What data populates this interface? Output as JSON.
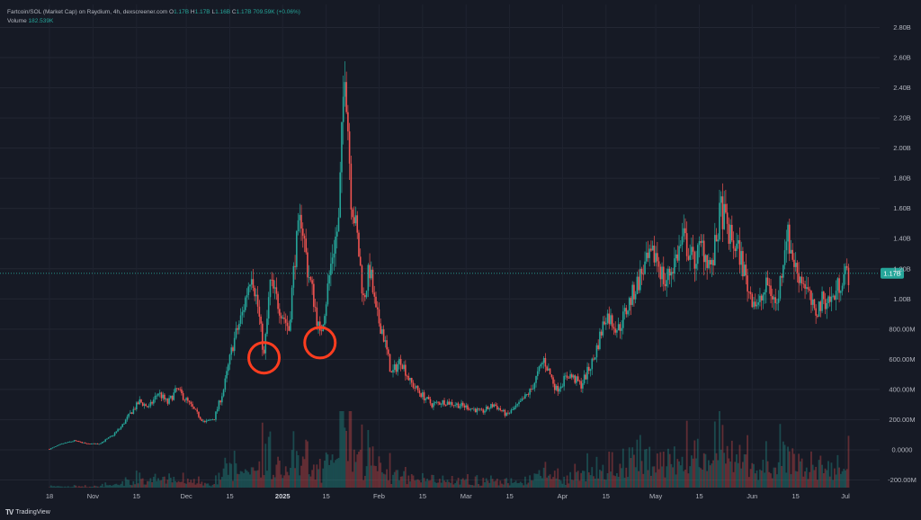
{
  "header": {
    "pair": "Fartcoin/SOL (Market Cap) on Raydium, 4h, dexscreener.com",
    "ohlc": [
      {
        "k": "O",
        "v": "1.17B"
      },
      {
        "k": "H",
        "v": "1.17B"
      },
      {
        "k": "L",
        "v": "1.16B"
      },
      {
        "k": "C",
        "v": "1.17B"
      }
    ],
    "change": "709.59K (+0.06%)",
    "volume_label": "Volume",
    "volume_value": "182.539K"
  },
  "brand": {
    "name": "TradingView"
  },
  "colors": {
    "up": "#26a69a",
    "down": "#ef5350",
    "marker": "#ff3d1f",
    "price_label_bg": "#26a69a",
    "background": "#161a25"
  },
  "chart_data": {
    "type": "candlestick",
    "grid": true,
    "y_tick_labels": [
      "2.80B",
      "2.60B",
      "2.40B",
      "2.20B",
      "2.00B",
      "1.80B",
      "1.60B",
      "1.40B",
      "1.20B",
      "1.00B",
      "800.00M",
      "600.00M",
      "400.00M",
      "200.00M",
      "0.0000",
      "-200.00M"
    ],
    "y_tick_values": [
      2800,
      2600,
      2400,
      2200,
      2000,
      1800,
      1600,
      1400,
      1200,
      1000,
      800,
      600,
      400,
      200,
      0,
      -200
    ],
    "y_unit": "millions",
    "ylim": [
      -200,
      2800
    ],
    "x_tick_labels": [
      "18",
      "Nov",
      "15",
      "Dec",
      "15",
      "2025",
      "15",
      "Feb",
      "15",
      "Mar",
      "15",
      "Apr",
      "15",
      "May",
      "15",
      "Jun",
      "15",
      "Jul"
    ],
    "x_tick_dates": [
      "2024-10-18",
      "2024-11-01",
      "2024-11-15",
      "2024-12-01",
      "2024-12-15",
      "2025-01-01",
      "2025-01-15",
      "2025-02-01",
      "2025-02-15",
      "2025-03-01",
      "2025-03-15",
      "2025-04-01",
      "2025-04-15",
      "2025-05-01",
      "2025-05-15",
      "2025-06-01",
      "2025-06-15",
      "2025-07-01"
    ],
    "last_price_label": "1.17B",
    "last_price_value": 1170,
    "price_path": [
      [
        "2024-10-18",
        5
      ],
      [
        "2024-10-22",
        40
      ],
      [
        "2024-10-26",
        60
      ],
      [
        "2024-10-30",
        40
      ],
      [
        "2024-11-03",
        40
      ],
      [
        "2024-11-07",
        90
      ],
      [
        "2024-11-10",
        150
      ],
      [
        "2024-11-13",
        240
      ],
      [
        "2024-11-16",
        320
      ],
      [
        "2024-11-19",
        280
      ],
      [
        "2024-11-22",
        380
      ],
      [
        "2024-11-25",
        310
      ],
      [
        "2024-11-28",
        400
      ],
      [
        "2024-12-01",
        330
      ],
      [
        "2024-12-04",
        250
      ],
      [
        "2024-12-07",
        180
      ],
      [
        "2024-12-10",
        210
      ],
      [
        "2024-12-13",
        400
      ],
      [
        "2024-12-16",
        700
      ],
      [
        "2024-12-19",
        900
      ],
      [
        "2024-12-22",
        1200
      ],
      [
        "2024-12-24",
        950
      ],
      [
        "2024-12-26",
        620
      ],
      [
        "2024-12-28",
        1100
      ],
      [
        "2024-12-30",
        1000
      ],
      [
        "2025-01-01",
        900
      ],
      [
        "2025-01-03",
        800
      ],
      [
        "2025-01-05",
        1300
      ],
      [
        "2025-01-07",
        1550
      ],
      [
        "2025-01-09",
        1200
      ],
      [
        "2025-01-11",
        1000
      ],
      [
        "2025-01-13",
        750
      ],
      [
        "2025-01-15",
        1000
      ],
      [
        "2025-01-17",
        1300
      ],
      [
        "2025-01-19",
        1500
      ],
      [
        "2025-01-21",
        2600
      ],
      [
        "2025-01-23",
        1700
      ],
      [
        "2025-01-25",
        1400
      ],
      [
        "2025-01-27",
        1000
      ],
      [
        "2025-01-29",
        1200
      ],
      [
        "2025-01-31",
        900
      ],
      [
        "2025-02-02",
        800
      ],
      [
        "2025-02-05",
        500
      ],
      [
        "2025-02-08",
        600
      ],
      [
        "2025-02-11",
        450
      ],
      [
        "2025-02-14",
        380
      ],
      [
        "2025-02-18",
        300
      ],
      [
        "2025-02-22",
        320
      ],
      [
        "2025-02-26",
        300
      ],
      [
        "2025-03-02",
        280
      ],
      [
        "2025-03-06",
        250
      ],
      [
        "2025-03-10",
        300
      ],
      [
        "2025-03-14",
        230
      ],
      [
        "2025-03-18",
        300
      ],
      [
        "2025-03-22",
        400
      ],
      [
        "2025-03-26",
        600
      ],
      [
        "2025-03-30",
        400
      ],
      [
        "2025-04-03",
        500
      ],
      [
        "2025-04-07",
        430
      ],
      [
        "2025-04-11",
        600
      ],
      [
        "2025-04-15",
        900
      ],
      [
        "2025-04-19",
        800
      ],
      [
        "2025-04-23",
        1000
      ],
      [
        "2025-04-27",
        1200
      ],
      [
        "2025-05-01",
        1300
      ],
      [
        "2025-05-04",
        1100
      ],
      [
        "2025-05-07",
        1250
      ],
      [
        "2025-05-10",
        1400
      ],
      [
        "2025-05-13",
        1250
      ],
      [
        "2025-05-16",
        1350
      ],
      [
        "2025-05-19",
        1200
      ],
      [
        "2025-05-22",
        1600
      ],
      [
        "2025-05-25",
        1400
      ],
      [
        "2025-05-28",
        1300
      ],
      [
        "2025-05-31",
        1050
      ],
      [
        "2025-06-03",
        950
      ],
      [
        "2025-06-06",
        1100
      ],
      [
        "2025-06-09",
        950
      ],
      [
        "2025-06-12",
        1450
      ],
      [
        "2025-06-15",
        1200
      ],
      [
        "2025-06-18",
        1100
      ],
      [
        "2025-06-21",
        900
      ],
      [
        "2025-06-24",
        1000
      ],
      [
        "2025-06-27",
        1000
      ],
      [
        "2025-06-30",
        1150
      ],
      [
        "2025-07-02",
        1170
      ]
    ],
    "annotations": [
      {
        "type": "circle",
        "date": "2024-12-26",
        "value": 610
      },
      {
        "type": "circle",
        "date": "2025-01-13",
        "value": 710
      }
    ]
  }
}
